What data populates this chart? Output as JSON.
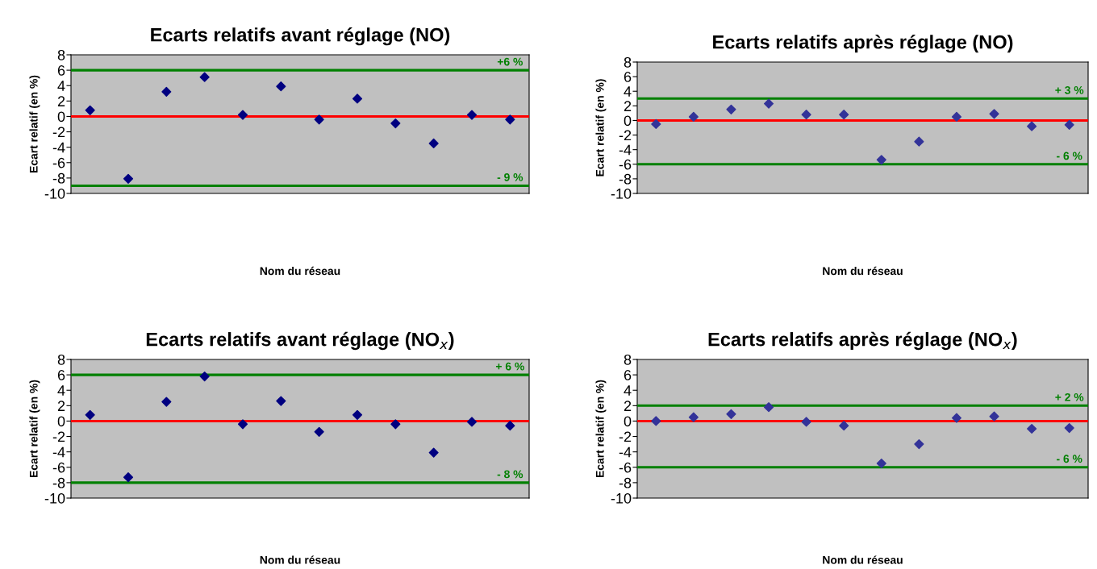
{
  "chart_data": [
    {
      "type": "scatter",
      "title": "Ecarts relatifs avant réglage (NO)",
      "xlabel": "Nom du réseau",
      "ylabel": "Ecart relatif (en %)",
      "categories": [
        null,
        null,
        null,
        null,
        null,
        null,
        null,
        null,
        null,
        null,
        null,
        null
      ],
      "series": [
        {
          "color": "#000080",
          "values": [
            0.8,
            -8.1,
            3.2,
            5.1,
            0.2,
            3.9,
            -0.4,
            2.3,
            -0.9,
            -3.5,
            0.2,
            -0.4
          ]
        }
      ],
      "ylim": [
        -10,
        8
      ],
      "yticks": [
        -10,
        -8,
        -6,
        -4,
        -2,
        0,
        2,
        4,
        6,
        8
      ],
      "marker": "diamond",
      "grid": false,
      "ref_lines": [
        {
          "axis": "y",
          "value": 6,
          "label": "+6 %",
          "color": "#008000"
        },
        {
          "axis": "y",
          "value": -9,
          "label": "- 9 %",
          "color": "#008000"
        },
        {
          "axis": "y",
          "value": 0,
          "color": "#ff0000"
        }
      ]
    },
    {
      "type": "scatter",
      "title": "Ecarts relatifs après réglage (NO)",
      "xlabel": "Nom du réseau",
      "ylabel": "Ecart relatif (en %)",
      "categories": [
        null,
        null,
        null,
        null,
        null,
        null,
        null,
        null,
        null,
        null,
        null,
        null
      ],
      "series": [
        {
          "color": "#333399",
          "values": [
            -0.5,
            0.5,
            1.5,
            2.3,
            0.8,
            0.8,
            -5.4,
            -2.9,
            0.5,
            0.9,
            -0.8,
            -0.6
          ]
        }
      ],
      "ylim": [
        -10,
        8
      ],
      "yticks": [
        -10,
        -8,
        -6,
        -4,
        -2,
        0,
        2,
        4,
        6,
        8
      ],
      "marker": "diamond",
      "grid": false,
      "ref_lines": [
        {
          "axis": "y",
          "value": 3,
          "label": "+ 3 %",
          "color": "#008000"
        },
        {
          "axis": "y",
          "value": -6,
          "label": "- 6 %",
          "color": "#008000"
        },
        {
          "axis": "y",
          "value": 0,
          "color": "#ff0000"
        }
      ]
    },
    {
      "type": "scatter",
      "title": "Ecarts relatifs avant réglage (NO$_{x}$)",
      "xlabel": "Nom du réseau",
      "ylabel": "Ecart relatif (en %)",
      "categories": [
        null,
        null,
        null,
        null,
        null,
        null,
        null,
        null,
        null,
        null,
        null,
        null
      ],
      "series": [
        {
          "color": "#000080",
          "values": [
            0.8,
            -7.3,
            2.5,
            5.8,
            -0.4,
            2.6,
            -1.4,
            0.8,
            -0.4,
            -4.1,
            -0.1,
            -0.6
          ]
        }
      ],
      "ylim": [
        -10,
        8
      ],
      "yticks": [
        -10,
        -8,
        -6,
        -4,
        -2,
        0,
        2,
        4,
        6,
        8
      ],
      "marker": "diamond",
      "grid": false,
      "ref_lines": [
        {
          "axis": "y",
          "value": 6,
          "label": "+ 6 %",
          "color": "#008000"
        },
        {
          "axis": "y",
          "value": -8,
          "label": "- 8 %",
          "color": "#008000"
        },
        {
          "axis": "y",
          "value": 0,
          "color": "#ff0000"
        }
      ]
    },
    {
      "type": "scatter",
      "title": "Ecarts relatifs après réglage (NO$_{x}$)",
      "xlabel": "Nom du réseau",
      "ylabel": "Ecart relatif (en %)",
      "categories": [
        null,
        null,
        null,
        null,
        null,
        null,
        null,
        null,
        null,
        null,
        null,
        null
      ],
      "series": [
        {
          "color": "#333399",
          "values": [
            0.0,
            0.5,
            0.9,
            1.8,
            -0.1,
            -0.6,
            -5.5,
            -3.0,
            0.4,
            0.6,
            -1.0,
            -0.9
          ]
        }
      ],
      "ylim": [
        -10,
        8
      ],
      "yticks": [
        -10,
        -8,
        -6,
        -4,
        -2,
        0,
        2,
        4,
        6,
        8
      ],
      "marker": "diamond",
      "grid": false,
      "ref_lines": [
        {
          "axis": "y",
          "value": 2,
          "label": "+ 2 %",
          "color": "#008000"
        },
        {
          "axis": "y",
          "value": -6,
          "label": "- 6 %",
          "color": "#008000"
        },
        {
          "axis": "y",
          "value": 0,
          "color": "#ff0000"
        }
      ]
    }
  ]
}
